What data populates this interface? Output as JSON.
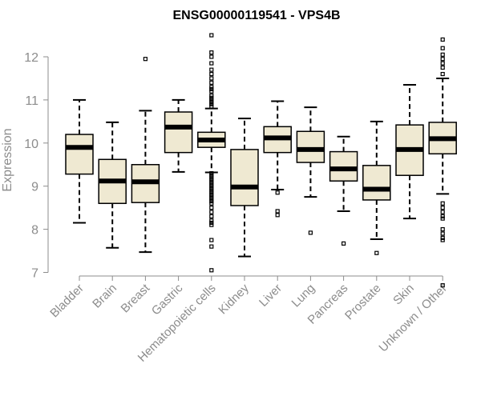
{
  "chart_data": {
    "type": "boxplot",
    "title": "ENSG00000119541 - VPS4B",
    "ylabel": "Expression",
    "ylim": [
      6.6,
      12.6
    ],
    "yticks": [
      7,
      8,
      9,
      10,
      11,
      12
    ],
    "box_fill": "#efe9d2",
    "categories": [
      "Bladder",
      "Brain",
      "Breast",
      "Gastric",
      "Hematopoietic cells",
      "Kidney",
      "Liver",
      "Lung",
      "Pancreas",
      "Prostate",
      "Skin",
      "Unknown / Other"
    ],
    "boxes": [
      {
        "whisker_low": 8.15,
        "q1": 9.28,
        "median": 9.9,
        "q3": 10.2,
        "whisker_high": 11.0,
        "outliers": []
      },
      {
        "whisker_low": 7.57,
        "q1": 8.6,
        "median": 9.12,
        "q3": 9.62,
        "whisker_high": 10.48,
        "outliers": []
      },
      {
        "whisker_low": 7.47,
        "q1": 8.62,
        "median": 9.1,
        "q3": 9.5,
        "whisker_high": 10.75,
        "outliers": [
          11.95
        ]
      },
      {
        "whisker_low": 9.33,
        "q1": 9.78,
        "median": 10.37,
        "q3": 10.72,
        "whisker_high": 11.0,
        "outliers": []
      },
      {
        "whisker_low": 9.32,
        "q1": 9.9,
        "median": 10.07,
        "q3": 10.25,
        "whisker_high": 10.8,
        "outliers": [
          12.5,
          12.1,
          12.0,
          11.85,
          11.7,
          11.6,
          11.5,
          11.4,
          11.3,
          11.25,
          11.2,
          11.1,
          11.05,
          11.0,
          10.95,
          10.9,
          10.85,
          9.3,
          9.25,
          9.2,
          9.15,
          9.1,
          9.05,
          9.0,
          8.95,
          8.9,
          8.85,
          8.8,
          8.75,
          8.7,
          8.65,
          8.6,
          8.5,
          8.4,
          8.3,
          8.2,
          8.15,
          8.1,
          7.75,
          7.6,
          7.05
        ]
      },
      {
        "whisker_low": 7.37,
        "q1": 8.55,
        "median": 8.98,
        "q3": 9.85,
        "whisker_high": 10.57,
        "outliers": []
      },
      {
        "whisker_low": 8.92,
        "q1": 9.78,
        "median": 10.12,
        "q3": 10.38,
        "whisker_high": 10.97,
        "outliers": [
          8.85,
          8.42,
          8.33
        ]
      },
      {
        "whisker_low": 8.75,
        "q1": 9.55,
        "median": 9.85,
        "q3": 10.27,
        "whisker_high": 10.83,
        "outliers": [
          7.92
        ]
      },
      {
        "whisker_low": 8.42,
        "q1": 9.12,
        "median": 9.4,
        "q3": 9.8,
        "whisker_high": 10.15,
        "outliers": [
          7.67
        ]
      },
      {
        "whisker_low": 7.77,
        "q1": 8.68,
        "median": 8.93,
        "q3": 9.48,
        "whisker_high": 10.5,
        "outliers": [
          7.45
        ]
      },
      {
        "whisker_low": 8.25,
        "q1": 9.25,
        "median": 9.85,
        "q3": 10.42,
        "whisker_high": 11.35,
        "outliers": []
      },
      {
        "whisker_low": 8.82,
        "q1": 9.75,
        "median": 10.1,
        "q3": 10.48,
        "whisker_high": 11.5,
        "outliers": [
          12.4,
          12.2,
          12.05,
          11.95,
          11.85,
          11.75,
          11.6,
          8.6,
          8.5,
          8.4,
          8.3,
          8.25,
          8.0,
          7.9,
          7.8,
          7.75,
          6.7
        ]
      }
    ]
  }
}
